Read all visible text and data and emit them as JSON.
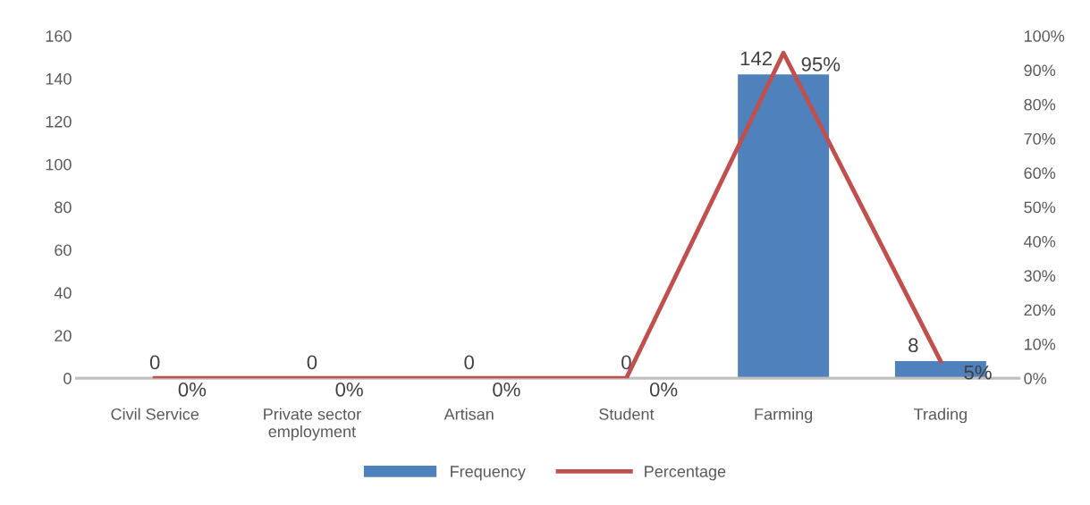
{
  "chart_data": {
    "type": "bar",
    "categories": [
      "Civil Service",
      "Private sector\nemployment",
      "Artisan",
      "Student",
      "Farming",
      "Trading"
    ],
    "series": [
      {
        "name": "Frequency",
        "color": "#4f81bd",
        "values": [
          0,
          0,
          0,
          0,
          142,
          8
        ],
        "value_labels": [
          "0",
          "0",
          "0",
          "0",
          "142",
          "8"
        ]
      },
      {
        "name": "Percentage",
        "type": "line",
        "axis": "y2",
        "color": "#c0504d",
        "values": [
          0,
          0,
          0,
          0,
          95,
          5
        ],
        "value_labels": [
          "0%",
          "0%",
          "0%",
          "0%",
          "95%",
          "5%"
        ]
      }
    ],
    "ylim": [
      0,
      160
    ],
    "yticks": [
      0,
      20,
      40,
      60,
      80,
      100,
      120,
      140,
      160
    ],
    "y2lim": [
      0,
      100
    ],
    "y2ticks": [
      {
        "value": 0,
        "label": "0%"
      },
      {
        "value": 10,
        "label": "10%"
      },
      {
        "value": 20,
        "label": "20%"
      },
      {
        "value": 30,
        "label": "30%"
      },
      {
        "value": 40,
        "label": "40%"
      },
      {
        "value": 50,
        "label": "50%"
      },
      {
        "value": 60,
        "label": "60%"
      },
      {
        "value": 70,
        "label": "70%"
      },
      {
        "value": 80,
        "label": "80%"
      },
      {
        "value": 90,
        "label": "90%"
      },
      {
        "value": 100,
        "label": "100%"
      }
    ],
    "grid": false,
    "legend": "bottom",
    "marker": "none",
    "line_style": "solid"
  }
}
